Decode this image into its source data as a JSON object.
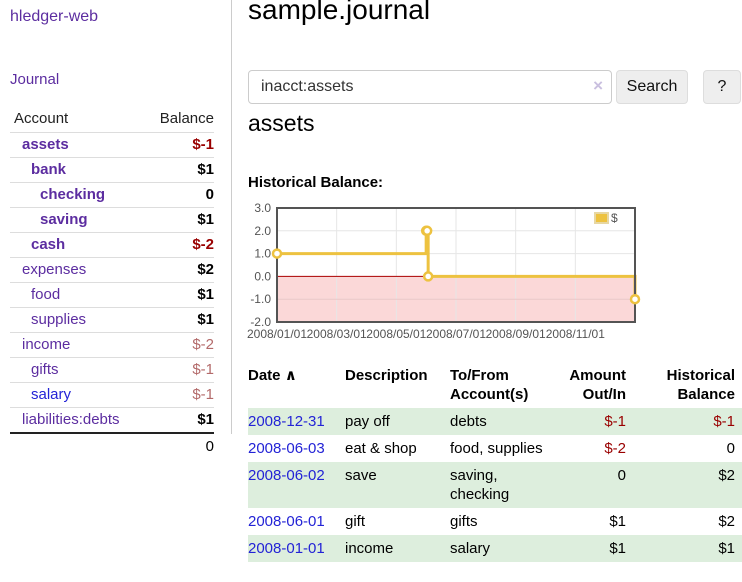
{
  "sidebar": {
    "app_title": "hledger-web",
    "journal_link": "Journal",
    "accounts": {
      "header_account": "Account",
      "header_balance": "Balance",
      "rows": [
        {
          "name": "assets",
          "indent": 1,
          "bold": true,
          "balance": "$-1",
          "balance_style": "neg-strong"
        },
        {
          "name": "bank",
          "indent": 2,
          "bold": true,
          "balance": "$1",
          "balance_style": "pos"
        },
        {
          "name": "checking",
          "indent": 3,
          "bold": true,
          "balance": "0",
          "balance_style": "pos"
        },
        {
          "name": "saving",
          "indent": 3,
          "bold": true,
          "balance": "$1",
          "balance_style": "pos"
        },
        {
          "name": "cash",
          "indent": 2,
          "bold": true,
          "balance": "$-2",
          "balance_style": "neg-strong"
        },
        {
          "name": "expenses",
          "indent": 1,
          "bold": false,
          "balance": "$2",
          "balance_style": "pos"
        },
        {
          "name": "food",
          "indent": 2,
          "bold": false,
          "balance": "$1",
          "balance_style": "pos"
        },
        {
          "name": "supplies",
          "indent": 2,
          "bold": false,
          "balance": "$1",
          "balance_style": "pos"
        },
        {
          "name": "income",
          "indent": 1,
          "bold": false,
          "balance": "$-2",
          "balance_style": "neg-muted"
        },
        {
          "name": "gifts",
          "indent": 2,
          "bold": false,
          "balance": "$-1",
          "balance_style": "neg-muted"
        },
        {
          "name": "salary",
          "indent": 2,
          "bold": false,
          "balance": "$-1",
          "balance_style": "neg-muted",
          "link_blue": true
        },
        {
          "name": "liabilities:debts",
          "indent": 1,
          "bold": false,
          "balance": "$1",
          "balance_style": "pos"
        }
      ],
      "total": "0"
    }
  },
  "header": {
    "title": "sample.journal"
  },
  "search": {
    "value": "inacct:assets",
    "button_label": "Search",
    "help_label": "?"
  },
  "icons": {
    "clear": "×",
    "sort_ascending": "∧"
  },
  "main": {
    "account_heading": "assets"
  },
  "chart_data": {
    "type": "line",
    "step": true,
    "title": "Historical Balance:",
    "series": [
      {
        "name": "$",
        "color": "#edc240",
        "points": [
          {
            "date": "2008/01/01",
            "value": 1
          },
          {
            "date": "2008/06/01",
            "value": 2
          },
          {
            "date": "2008/06/02",
            "value": 2
          },
          {
            "date": "2008/06/03",
            "value": 0
          },
          {
            "date": "2008/12/31",
            "value": -1
          }
        ]
      }
    ],
    "ylim": [
      -2,
      3
    ],
    "y_ticks": [
      {
        "label": "3.0",
        "value": 3
      },
      {
        "label": "2.0",
        "value": 2
      },
      {
        "label": "1.0",
        "value": 1
      },
      {
        "label": "0.0",
        "value": 0
      },
      {
        "label": "-1.0",
        "value": -1
      },
      {
        "label": "-2.0",
        "value": -2
      }
    ],
    "x_ticks": [
      {
        "label": "2008/01/01",
        "date": "2008/01/01"
      },
      {
        "label": "2008/03/01",
        "date": "2008/03/01"
      },
      {
        "label": "2008/05/01",
        "date": "2008/05/01"
      },
      {
        "label": "2008/07/01",
        "date": "2008/07/01"
      },
      {
        "label": "2008/09/01",
        "date": "2008/09/01"
      },
      {
        "label": "2008/11/01",
        "date": "2008/11/01"
      }
    ],
    "grid": true,
    "legend_position": "top-right",
    "negative_region_color": "#fbd8d8",
    "zero_line_color": "#aa0000",
    "border_color": "#545454",
    "gridline_color": "#e6e6e6"
  },
  "register": {
    "columns": {
      "date": "Date",
      "description": "Description",
      "accounts": "To/From Account(s)",
      "amount": "Amount Out/In",
      "balance": "Historical Balance"
    },
    "rows": [
      {
        "date": "2008-12-31",
        "description": "pay off",
        "accounts": "debts",
        "amount": "$-1",
        "amount_neg": true,
        "balance": "$-1",
        "balance_neg": true
      },
      {
        "date": "2008-06-03",
        "description": "eat & shop",
        "accounts": "food, supplies",
        "amount": "$-2",
        "amount_neg": true,
        "balance": "0",
        "balance_neg": false
      },
      {
        "date": "2008-06-02",
        "description": "save",
        "accounts": "saving, checking",
        "amount": "0",
        "amount_neg": false,
        "balance": "$2",
        "balance_neg": false
      },
      {
        "date": "2008-06-01",
        "description": "gift",
        "accounts": "gifts",
        "amount": "$1",
        "amount_neg": false,
        "balance": "$2",
        "balance_neg": false
      },
      {
        "date": "2008-01-01",
        "description": "income",
        "accounts": "salary",
        "amount": "$1",
        "amount_neg": false,
        "balance": "$1",
        "balance_neg": false
      }
    ]
  },
  "colors": {
    "accent_purple": "#5c2da0",
    "link_blue": "#2323d6",
    "negative_strong": "#990000",
    "negative_muted": "#b36a6a",
    "row_stripe_green": "#ddeedd",
    "chart_line_yellow": "#edc240"
  }
}
